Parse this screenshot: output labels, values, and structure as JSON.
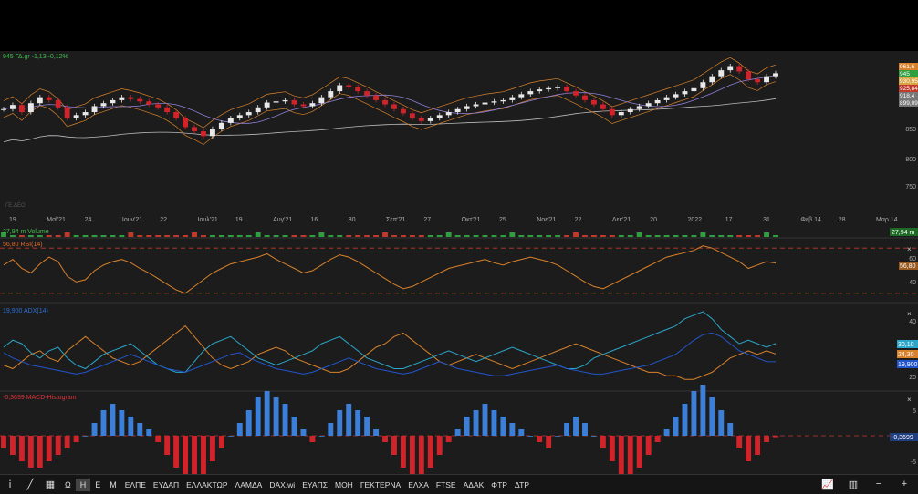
{
  "header": {
    "instrument_label": "945 ΓΔ.gr -1,13 -0,12%"
  },
  "price_pane": {
    "y_ticks": [
      "850",
      "800",
      "750"
    ],
    "x_ticks": [
      "19",
      "Μαΐ'21",
      "24",
      "Ιουν'21",
      "22",
      "Ιουλ'21",
      "19",
      "Αυγ'21",
      "16",
      "30",
      "Σεπ'21",
      "27",
      "Οκτ'21",
      "25",
      "Νοε'21",
      "22",
      "Δεκ'21",
      "20",
      "2022",
      "17",
      "31",
      "Φεβ 14",
      "28",
      "Μαρ 14"
    ],
    "price_labels": [
      {
        "text": "961,6",
        "color": "#d9822b"
      },
      {
        "text": "945",
        "color": "#2e9e3e"
      },
      {
        "text": "930,95",
        "color": "#d9a441"
      },
      {
        "text": "925,84",
        "color": "#c0392b"
      },
      {
        "text": "918,4",
        "color": "#777777"
      },
      {
        "text": "899,09",
        "color": "#777777"
      }
    ],
    "watermark": "ΓΕ.ΔΕΟ"
  },
  "volume_pane": {
    "label": "27,94 m Volume",
    "value_tag": "27,94 m"
  },
  "rsi_pane": {
    "label": "56,80 RSI(14)",
    "y_ticks": [
      "60",
      "40"
    ],
    "value_tag": "56,80"
  },
  "adx_pane": {
    "label": "19,900 ADX(14)",
    "y_ticks": [
      "40",
      "20"
    ],
    "value_tags": [
      {
        "text": "30,10",
        "color": "#2aa7c9"
      },
      {
        "text": "24,30",
        "color": "#d9822b"
      },
      {
        "text": "19,900",
        "color": "#2255cc"
      }
    ]
  },
  "macd_pane": {
    "label": "-0,3699 MACD-Histogram",
    "y_ticks": [
      "5",
      "-5"
    ],
    "value_tag": "-0,3699"
  },
  "colors": {
    "up_candle": "#e8e8e8",
    "down_candle": "#d1232a",
    "ma_orange": "#d9822b",
    "ma_white": "#bbbbbb",
    "bb_purple": "#8f7fd6",
    "rsi_line": "#d9822b",
    "adx_blue": "#2255cc",
    "di_plus": "#2aa7c9",
    "di_minus": "#d9822b",
    "hist_pos": "#3c7fd8",
    "hist_neg": "#d1232a",
    "ref_line": "#c0392b"
  },
  "chart_data": {
    "type": "line",
    "title": "945 ΓΔ.gr -1,13 -0,12%",
    "x_ticks": [
      "19",
      "Μαΐ'21",
      "24",
      "Ιουν'21",
      "22",
      "Ιουλ'21",
      "19",
      "Αυγ'21",
      "16",
      "30",
      "Σεπ'21",
      "27",
      "Οκτ'21",
      "25",
      "Νοε'21",
      "22",
      "Δεκ'21",
      "20",
      "2022",
      "17",
      "31",
      "Φεβ 14",
      "28",
      "Μαρ 14"
    ],
    "ylim": [
      720,
      970
    ],
    "price_close": [
      885,
      892,
      880,
      895,
      905,
      900,
      888,
      870,
      875,
      880,
      890,
      895,
      900,
      905,
      902,
      898,
      893,
      888,
      880,
      870,
      855,
      848,
      840,
      852,
      862,
      870,
      875,
      880,
      888,
      896,
      898,
      900,
      893,
      890,
      895,
      905,
      915,
      925,
      922,
      915,
      908,
      900,
      893,
      885,
      878,
      870,
      865,
      870,
      875,
      880,
      885,
      890,
      893,
      896,
      898,
      900,
      905,
      910,
      915,
      918,
      920,
      922,
      915,
      908,
      900,
      893,
      885,
      875,
      880,
      885,
      890,
      895,
      900,
      905,
      910,
      915,
      920,
      930,
      940,
      950,
      957,
      948,
      935,
      930,
      940,
      945
    ],
    "rsi": [
      55,
      60,
      52,
      48,
      56,
      62,
      58,
      45,
      40,
      42,
      50,
      55,
      58,
      60,
      57,
      52,
      48,
      43,
      38,
      33,
      30,
      36,
      42,
      48,
      52,
      56,
      58,
      60,
      62,
      65,
      60,
      56,
      52,
      48,
      50,
      55,
      60,
      64,
      62,
      58,
      53,
      48,
      43,
      38,
      34,
      36,
      40,
      44,
      48,
      52,
      54,
      56,
      58,
      60,
      57,
      55,
      58,
      60,
      62,
      60,
      58,
      55,
      50,
      45,
      40,
      36,
      34,
      38,
      42,
      46,
      50,
      54,
      58,
      62,
      64,
      66,
      68,
      72,
      70,
      66,
      62,
      58,
      52,
      55,
      58,
      56.8
    ],
    "adx": [
      25,
      22,
      20,
      18,
      17,
      16,
      15,
      14,
      13,
      14,
      16,
      18,
      20,
      22,
      24,
      22,
      20,
      18,
      16,
      15,
      14,
      16,
      18,
      20,
      22,
      24,
      25,
      22,
      20,
      18,
      16,
      15,
      14,
      13,
      14,
      16,
      18,
      20,
      22,
      20,
      18,
      16,
      15,
      14,
      13,
      14,
      16,
      18,
      20,
      18,
      16,
      15,
      14,
      13,
      12,
      12,
      13,
      14,
      15,
      16,
      17,
      18,
      16,
      15,
      14,
      13,
      13,
      14,
      15,
      16,
      17,
      18,
      20,
      22,
      24,
      28,
      32,
      35,
      36,
      34,
      30,
      26,
      24,
      22,
      20,
      19.9
    ],
    "di_plus": [
      28,
      32,
      30,
      25,
      22,
      26,
      28,
      22,
      18,
      16,
      20,
      24,
      26,
      28,
      30,
      26,
      22,
      18,
      16,
      14,
      14,
      20,
      26,
      30,
      32,
      34,
      30,
      26,
      22,
      20,
      18,
      20,
      22,
      24,
      26,
      30,
      32,
      34,
      30,
      26,
      22,
      20,
      18,
      16,
      16,
      18,
      20,
      22,
      24,
      26,
      24,
      22,
      20,
      22,
      24,
      26,
      28,
      26,
      24,
      22,
      20,
      18,
      16,
      16,
      18,
      22,
      24,
      26,
      28,
      30,
      32,
      34,
      36,
      38,
      40,
      44,
      46,
      48,
      44,
      38,
      34,
      30,
      32,
      30,
      28,
      30.1
    ],
    "di_minus": [
      18,
      16,
      20,
      24,
      26,
      22,
      20,
      26,
      30,
      34,
      30,
      26,
      22,
      20,
      18,
      20,
      24,
      28,
      32,
      36,
      40,
      34,
      28,
      22,
      18,
      16,
      18,
      20,
      24,
      26,
      28,
      26,
      22,
      20,
      18,
      16,
      14,
      14,
      16,
      20,
      24,
      28,
      30,
      34,
      36,
      32,
      28,
      24,
      20,
      18,
      20,
      22,
      24,
      22,
      20,
      18,
      16,
      18,
      20,
      22,
      24,
      26,
      28,
      30,
      28,
      26,
      24,
      22,
      20,
      18,
      16,
      14,
      14,
      12,
      12,
      10,
      10,
      12,
      14,
      18,
      22,
      24,
      26,
      24,
      26,
      24.3
    ],
    "macd_hist": [
      -2,
      -3,
      -4,
      -5,
      -5,
      -4,
      -3,
      -2,
      -1,
      0,
      2,
      4,
      5,
      4,
      3,
      2,
      1,
      -1,
      -3,
      -5,
      -7,
      -8,
      -6,
      -4,
      -2,
      0,
      2,
      4,
      6,
      7,
      6,
      5,
      3,
      1,
      -1,
      0,
      2,
      4,
      5,
      4,
      3,
      1,
      -1,
      -3,
      -5,
      -6,
      -7,
      -5,
      -3,
      -1,
      1,
      3,
      4,
      5,
      4,
      3,
      2,
      1,
      0,
      -1,
      -2,
      0,
      2,
      3,
      2,
      0,
      -2,
      -4,
      -6,
      -7,
      -5,
      -3,
      -1,
      1,
      3,
      5,
      7,
      8,
      6,
      4,
      2,
      -2,
      -4,
      -3,
      -1,
      -0.37
    ]
  },
  "bottom_bar": {
    "timeframes": [
      "Ω",
      "Η",
      "Ε",
      "Μ"
    ],
    "active_timeframe": "Η",
    "symbols": [
      "ΕΛΠΕ",
      "ΕΥΔΑΠ",
      "ΕΛΛΑΚΤΩΡ",
      "ΛΑΜΔΑ",
      "DAX.wi",
      "ΕΥΑΠΣ",
      "ΜΟΗ",
      "ΓΕΚΤΕΡΝΑ",
      "ΕΛΧΑ",
      "FTSE",
      "ΑΔΑΚ",
      "ΦΤΡ",
      "ΔΤΡ"
    ]
  }
}
